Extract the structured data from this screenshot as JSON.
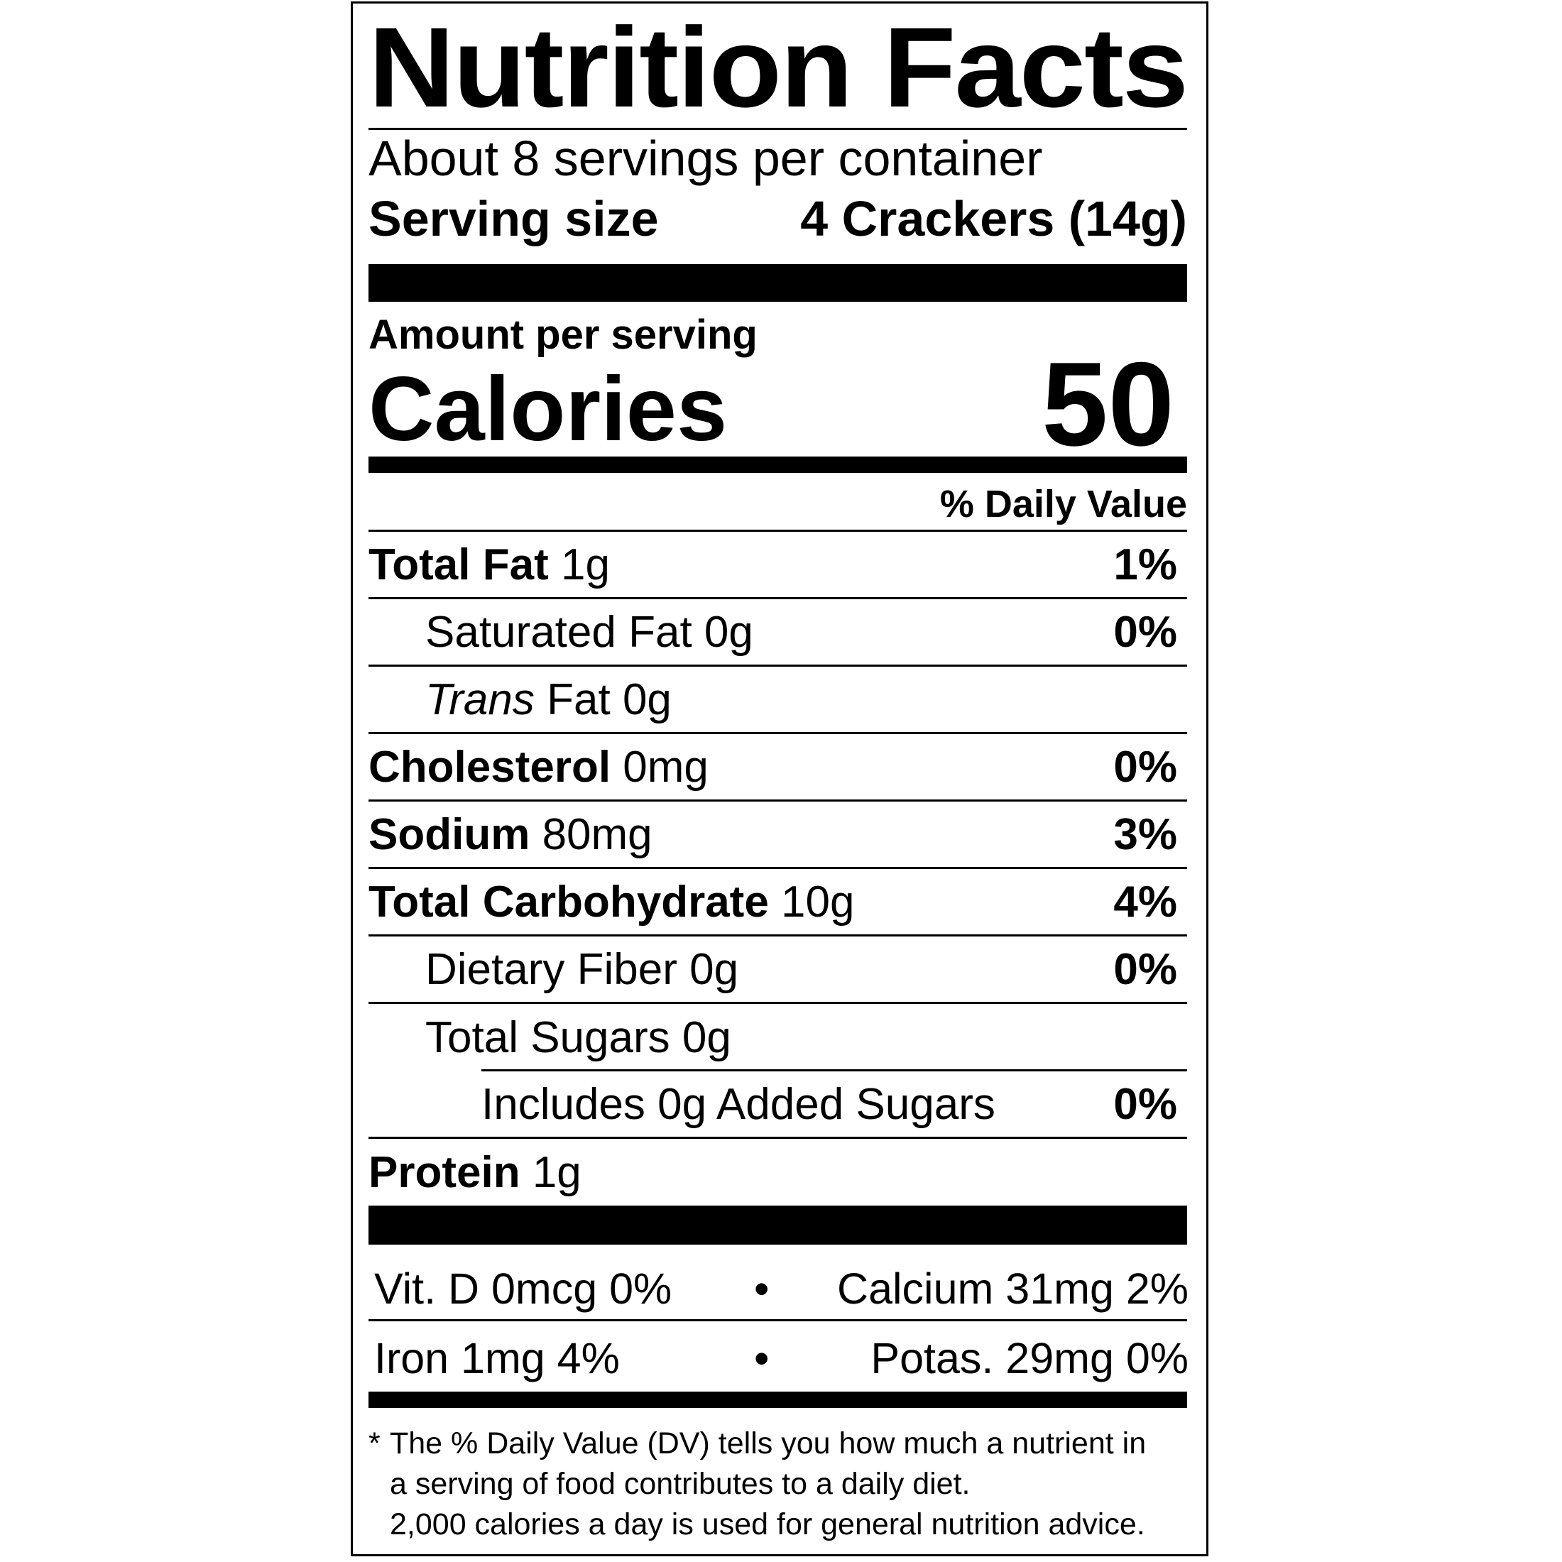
{
  "title": "Nutrition Facts",
  "servings_per_container": "About 8 servings per container",
  "serving_size_label": "Serving size",
  "serving_size_value": "4 Crackers (14g)",
  "amount_per_serving": "Amount per serving",
  "calories_label": "Calories",
  "calories_value": "50",
  "daily_value_header": "% Daily Value",
  "nutrients": [
    {
      "name": "Total Fat",
      "amount": "1g",
      "dv": "1%"
    },
    {
      "name": "Saturated Fat",
      "amount": "0g",
      "dv": "0%"
    },
    {
      "name_italic": "Trans",
      "name": "Fat",
      "amount": "0g",
      "dv": ""
    },
    {
      "name": "Cholesterol",
      "amount": "0mg",
      "dv": "0%"
    },
    {
      "name": "Sodium",
      "amount": "80mg",
      "dv": "3%"
    },
    {
      "name": "Total Carbohydrate",
      "amount": "10g",
      "dv": "4%"
    },
    {
      "name": "Dietary Fiber",
      "amount": "0g",
      "dv": "0%"
    },
    {
      "name": "Total Sugars",
      "amount": "0g",
      "dv": ""
    },
    {
      "name": "Includes 0g Added Sugars",
      "amount": "",
      "dv": "0%"
    },
    {
      "name": "Protein",
      "amount": "1g",
      "dv": ""
    }
  ],
  "vitamins": [
    {
      "left": "Vit. D 0mcg 0%",
      "right": "Calcium 31mg 2%"
    },
    {
      "left": "Iron 1mg 4%",
      "right": "Potas. 29mg 0%"
    }
  ],
  "bullet": "•",
  "footnote": {
    "star": "*",
    "lines": [
      "The % Daily Value (DV) tells you how much a nutrient in",
      "a serving of food contributes to a daily diet.",
      "2,000 calories a day is used for general nutrition advice."
    ]
  }
}
